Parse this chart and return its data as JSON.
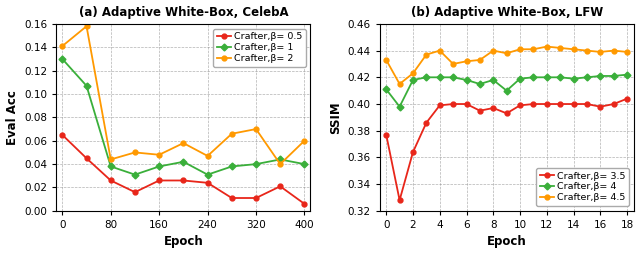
{
  "plot_a": {
    "title": "(a) Adaptive White-Box, CelebA",
    "xlabel": "Epoch",
    "ylabel": "Eval Acc",
    "xlim": [
      -10,
      410
    ],
    "ylim": [
      0.0,
      0.16
    ],
    "xticks": [
      0,
      80,
      160,
      240,
      320,
      400
    ],
    "yticks": [
      0.0,
      0.02,
      0.04,
      0.06,
      0.08,
      0.1,
      0.12,
      0.14,
      0.16
    ],
    "series": [
      {
        "label": "Crafter,β= 0.5",
        "color": "#e8261a",
        "marker": "o",
        "x": [
          0,
          40,
          80,
          120,
          160,
          200,
          240,
          280,
          320,
          360,
          400
        ],
        "y": [
          0.065,
          0.045,
          0.026,
          0.016,
          0.026,
          0.026,
          0.024,
          0.011,
          0.011,
          0.021,
          0.006
        ]
      },
      {
        "label": "Crafter,β= 1",
        "color": "#3aaf3a",
        "marker": "D",
        "x": [
          0,
          40,
          80,
          120,
          160,
          200,
          240,
          280,
          320,
          360,
          400
        ],
        "y": [
          0.13,
          0.107,
          0.038,
          0.031,
          0.038,
          0.042,
          0.031,
          0.038,
          0.04,
          0.044,
          0.04
        ]
      },
      {
        "label": "Crafter,β= 2",
        "color": "#ff9900",
        "marker": "o",
        "x": [
          0,
          40,
          80,
          120,
          160,
          200,
          240,
          280,
          320,
          360,
          400
        ],
        "y": [
          0.141,
          0.158,
          0.044,
          0.05,
          0.048,
          0.058,
          0.047,
          0.066,
          0.07,
          0.04,
          0.06
        ]
      }
    ]
  },
  "plot_b": {
    "title": "(b) Adaptive White-Box, LFW",
    "xlabel": "Epoch",
    "ylabel": "SSIM",
    "xlim": [
      -0.5,
      18.5
    ],
    "ylim": [
      0.32,
      0.46
    ],
    "xticks": [
      0,
      2,
      4,
      6,
      8,
      10,
      12,
      14,
      16,
      18
    ],
    "yticks": [
      0.32,
      0.34,
      0.36,
      0.38,
      0.4,
      0.42,
      0.44,
      0.46
    ],
    "series": [
      {
        "label": "Crafter,β= 3.5",
        "color": "#e8261a",
        "marker": "o",
        "x": [
          0,
          1,
          2,
          3,
          4,
          5,
          6,
          7,
          8,
          9,
          10,
          11,
          12,
          13,
          14,
          15,
          16,
          17,
          18
        ],
        "y": [
          0.377,
          0.328,
          0.364,
          0.386,
          0.399,
          0.4,
          0.4,
          0.395,
          0.397,
          0.393,
          0.399,
          0.4,
          0.4,
          0.4,
          0.4,
          0.4,
          0.398,
          0.4,
          0.404
        ]
      },
      {
        "label": "Crafter,β= 4",
        "color": "#3aaf3a",
        "marker": "D",
        "x": [
          0,
          1,
          2,
          3,
          4,
          5,
          6,
          7,
          8,
          9,
          10,
          11,
          12,
          13,
          14,
          15,
          16,
          17,
          18
        ],
        "y": [
          0.411,
          0.398,
          0.418,
          0.42,
          0.42,
          0.42,
          0.418,
          0.415,
          0.418,
          0.41,
          0.419,
          0.42,
          0.42,
          0.42,
          0.419,
          0.42,
          0.421,
          0.421,
          0.422
        ]
      },
      {
        "label": "Crafter,β= 4.5",
        "color": "#ff9900",
        "marker": "o",
        "x": [
          0,
          1,
          2,
          3,
          4,
          5,
          6,
          7,
          8,
          9,
          10,
          11,
          12,
          13,
          14,
          15,
          16,
          17,
          18
        ],
        "y": [
          0.433,
          0.415,
          0.423,
          0.437,
          0.44,
          0.43,
          0.432,
          0.433,
          0.44,
          0.438,
          0.441,
          0.441,
          0.443,
          0.442,
          0.441,
          0.44,
          0.439,
          0.44,
          0.439
        ]
      }
    ]
  },
  "legend_fontsize": 6.8,
  "tick_fontsize": 7.5,
  "label_fontsize": 8.5,
  "title_fontsize": 8.5,
  "linewidth": 1.3,
  "markersize": 3.5
}
